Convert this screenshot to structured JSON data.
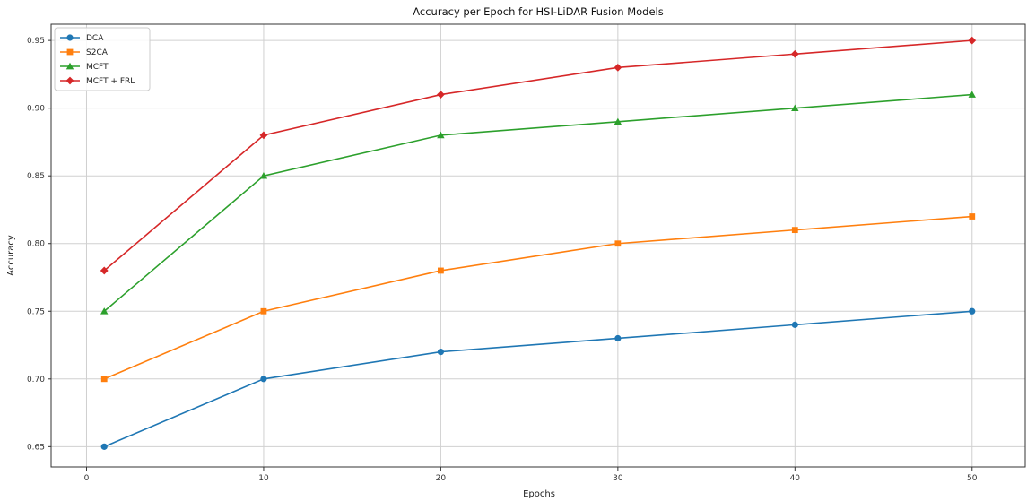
{
  "chart_data": {
    "type": "line",
    "title": "Accuracy per Epoch for HSI-LiDAR Fusion Models",
    "xlabel": "Epochs",
    "ylabel": "Accuracy",
    "x": [
      1,
      10,
      20,
      30,
      40,
      50
    ],
    "xlim": [
      -2,
      53
    ],
    "ylim": [
      0.635,
      0.962
    ],
    "xticks": [
      0,
      10,
      20,
      30,
      40,
      50
    ],
    "xtick_labels": [
      "0",
      "10",
      "20",
      "30",
      "40",
      "50"
    ],
    "yticks": [
      0.65,
      0.7,
      0.75,
      0.8,
      0.85,
      0.9,
      0.95
    ],
    "ytick_labels": [
      "0.65",
      "0.70",
      "0.75",
      "0.80",
      "0.85",
      "0.90",
      "0.95"
    ],
    "grid": true,
    "legend_position": "top-left",
    "series": [
      {
        "name": "DCA",
        "color": "#1f77b4",
        "marker": "circle",
        "values": [
          0.65,
          0.7,
          0.72,
          0.73,
          0.74,
          0.75
        ]
      },
      {
        "name": "S2CA",
        "color": "#ff7f0e",
        "marker": "square",
        "values": [
          0.7,
          0.75,
          0.78,
          0.8,
          0.81,
          0.82
        ]
      },
      {
        "name": "MCFT",
        "color": "#2ca02c",
        "marker": "triangle",
        "values": [
          0.75,
          0.85,
          0.88,
          0.89,
          0.9,
          0.91
        ]
      },
      {
        "name": "MCFT + FRL",
        "color": "#d62728",
        "marker": "diamond",
        "values": [
          0.78,
          0.88,
          0.91,
          0.93,
          0.94,
          0.95
        ]
      }
    ]
  }
}
